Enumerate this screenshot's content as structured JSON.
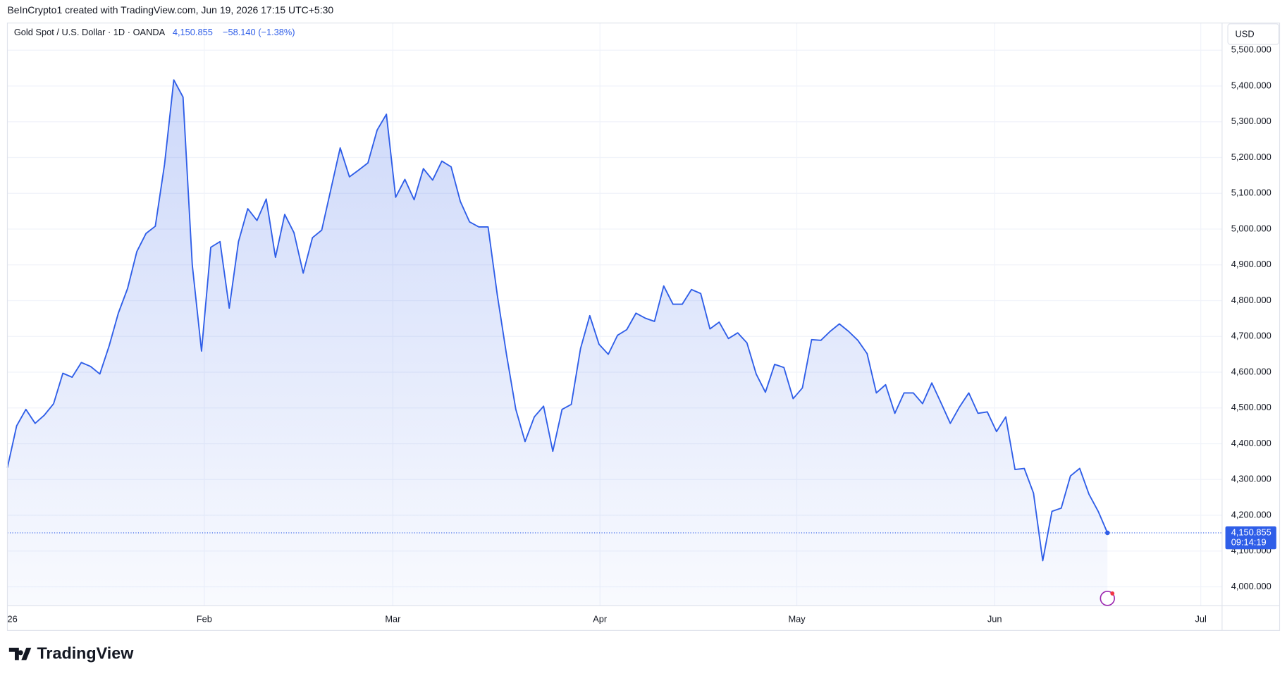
{
  "credit": "BeInCrypto1 created with TradingView.com, Jun 19, 2026 17:15 UTC+5:30",
  "logo": "TradingView",
  "chart_data": {
    "type": "area",
    "title": "Gold Spot / U.S. Dollar · 1D · OANDA",
    "price": "4,150.855",
    "change": "−58.140 (−1.38%)",
    "currency": "USD",
    "countdown": "09:14:19",
    "last_value_label": "4,150.855",
    "color": "#2f5ee8",
    "grid": true,
    "values": [
      4333,
      4450,
      4496,
      4457,
      4480,
      4512,
      4597,
      4586,
      4627,
      4616,
      4595,
      4673,
      4765,
      4834,
      4937,
      4988,
      5008,
      5181,
      5417,
      5369,
      4900,
      4659,
      4949,
      4965,
      4779,
      4965,
      5057,
      5024,
      5084,
      4921,
      5041,
      4990,
      4877,
      4976,
      4997,
      5112,
      5227,
      5146,
      5165,
      5185,
      5277,
      5321,
      5089,
      5139,
      5082,
      5169,
      5137,
      5190,
      5174,
      5077,
      5020,
      5006,
      5006,
      4815,
      4648,
      4496,
      4406,
      4475,
      4505,
      4379,
      4496,
      4510,
      4666,
      4758,
      4678,
      4650,
      4703,
      4719,
      4765,
      4751,
      4742,
      4841,
      4790,
      4790,
      4831,
      4820,
      4721,
      4740,
      4694,
      4710,
      4682,
      4595,
      4544,
      4622,
      4613,
      4526,
      4556,
      4691,
      4689,
      4714,
      4735,
      4714,
      4689,
      4652,
      4542,
      4565,
      4485,
      4542,
      4542,
      4512,
      4570,
      4514,
      4457,
      4503,
      4542,
      4485,
      4489,
      4434,
      4475,
      4328,
      4331,
      4262,
      4073,
      4211,
      4220,
      4310,
      4331,
      4259,
      4211,
      4150.855
    ],
    "xlim": [
      0,
      131.4
    ],
    "xticks": [
      {
        "value": 0,
        "label": "26"
      },
      {
        "value": 21.3,
        "label": "Feb"
      },
      {
        "value": 41.7,
        "label": "Mar"
      },
      {
        "value": 64.1,
        "label": "Apr"
      },
      {
        "value": 85.4,
        "label": "May"
      },
      {
        "value": 106.8,
        "label": "Jun"
      },
      {
        "value": 129.1,
        "label": "Jul"
      }
    ],
    "ylim": [
      3947,
      5576
    ],
    "yticks": [
      {
        "value": 4000,
        "label": "4,000.000"
      },
      {
        "value": 4100,
        "label": "4,100.000"
      },
      {
        "value": 4200,
        "label": "4,200.000"
      },
      {
        "value": 4300,
        "label": "4,300.000"
      },
      {
        "value": 4400,
        "label": "4,400.000"
      },
      {
        "value": 4500,
        "label": "4,500.000"
      },
      {
        "value": 4600,
        "label": "4,600.000"
      },
      {
        "value": 4700,
        "label": "4,700.000"
      },
      {
        "value": 4800,
        "label": "4,800.000"
      },
      {
        "value": 4900,
        "label": "4,900.000"
      },
      {
        "value": 5000,
        "label": "5,000.000"
      },
      {
        "value": 5100,
        "label": "5,100.000"
      },
      {
        "value": 5200,
        "label": "5,200.000"
      },
      {
        "value": 5300,
        "label": "5,300.000"
      },
      {
        "value": 5400,
        "label": "5,400.000"
      },
      {
        "value": 5500,
        "label": "5,500.000"
      }
    ]
  }
}
